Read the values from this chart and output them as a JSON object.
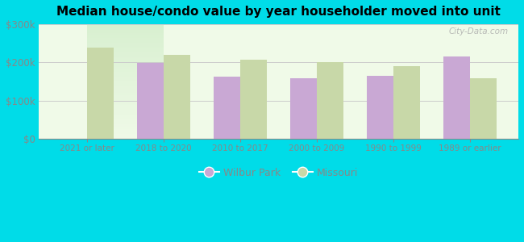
{
  "title": "Median house/condo value by year householder moved into unit",
  "categories": [
    "2021 or later",
    "2018 to 2020",
    "2010 to 2017",
    "2000 to 2009",
    "1990 to 1999",
    "1989 or earlier"
  ],
  "wilbur_park": [
    0,
    198000,
    163000,
    158000,
    165000,
    215000
  ],
  "missouri": [
    238000,
    220000,
    207000,
    202000,
    190000,
    158000
  ],
  "wilbur_color": "#c9a8d4",
  "missouri_color": "#c8d8a8",
  "background_outer": "#00dce8",
  "background_inner_top": "#d8f0d0",
  "background_inner_bottom": "#f0fae8",
  "ylim": [
    0,
    300000
  ],
  "yticks": [
    0,
    100000,
    200000,
    300000
  ],
  "ytick_labels": [
    "$0",
    "$100k",
    "$200k",
    "$300k"
  ],
  "bar_width": 0.35,
  "legend_wilbur": "Wilbur Park",
  "legend_missouri": "Missouri",
  "watermark": "City-Data.com",
  "tick_color": "#888888",
  "grid_color": "#cccccc"
}
